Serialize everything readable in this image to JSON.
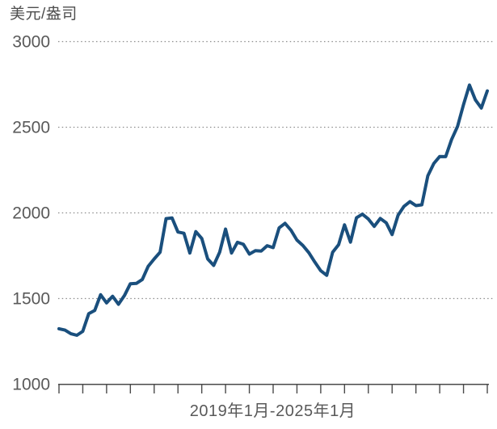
{
  "chart": {
    "unit_label": "美元/盎司",
    "x_axis_label": "2019年1月-2025年1月"
  },
  "colors": {
    "line": "#1a4f7d",
    "grid_dots": "#8c8c8c",
    "axis": "#4a4a4a",
    "label_text": "#595959",
    "unit_text": "#4d4d4d",
    "background": "#ffffff"
  },
  "chart_data": {
    "type": "line",
    "title": "",
    "ylabel": "美元/盎司",
    "xlabel": "2019年1月-2025年1月",
    "x_start": "2019年1月",
    "x_end": "2025年1月",
    "x_frequency": "monthly",
    "x_tick_count": 19,
    "x_ticks_every_n_months": 4,
    "ylim": [
      1000,
      3000
    ],
    "yticks": [
      1000,
      1500,
      2000,
      2500,
      3000
    ],
    "grid": "horizontal dotted",
    "legend": "none",
    "values": [
      1321,
      1313,
      1292,
      1283,
      1306,
      1409,
      1428,
      1520,
      1472,
      1511,
      1464,
      1515,
      1584,
      1586,
      1609,
      1686,
      1729,
      1768,
      1964,
      1968,
      1886,
      1879,
      1763,
      1888,
      1848,
      1729,
      1691,
      1768,
      1903,
      1763,
      1826,
      1814,
      1757,
      1777,
      1775,
      1806,
      1795,
      1910,
      1937,
      1896,
      1839,
      1807,
      1765,
      1711,
      1660,
      1633,
      1768,
      1812,
      1928,
      1827,
      1969,
      1990,
      1962,
      1919,
      1965,
      1940,
      1871,
      1984,
      2036,
      2063,
      2040,
      2045,
      2214,
      2286,
      2327,
      2326,
      2426,
      2503,
      2630,
      2744,
      2657,
      2610,
      2710
    ]
  }
}
